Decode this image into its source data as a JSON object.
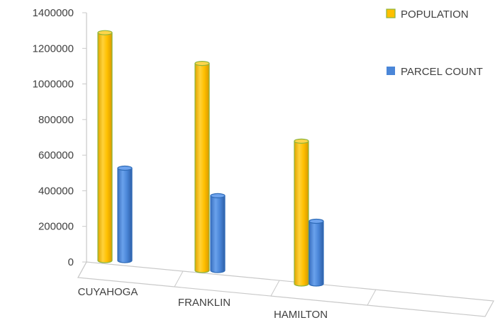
{
  "chart_data": {
    "type": "bar",
    "style": "3d-cylinder",
    "categories": [
      "CUYAHOGA",
      "FRANKLIN",
      "HAMILTON"
    ],
    "series": [
      {
        "name": "POPULATION",
        "values": [
          1280000,
          1163000,
          802000
        ],
        "color": "#FFC000",
        "edge_color": "#8DB43A"
      },
      {
        "name": "PARCEL COUNT",
        "values": [
          519000,
          420000,
          352000
        ],
        "color": "#4A86D8",
        "edge_color": "#2F6CB8"
      }
    ],
    "y_ticks": [
      "0",
      "200000",
      "400000",
      "600000",
      "800000",
      "1000000",
      "1200000",
      "1400000"
    ],
    "ylim": [
      0,
      1400000
    ],
    "legend_position": "top-right",
    "grid": false
  }
}
